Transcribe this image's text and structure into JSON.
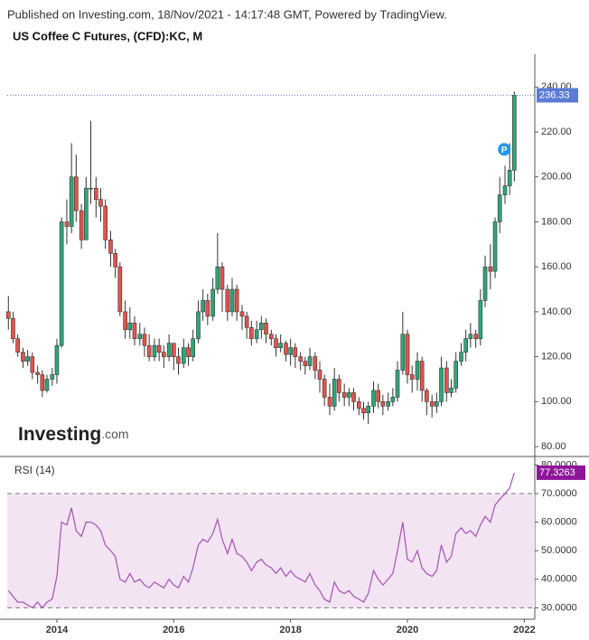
{
  "header": {
    "published": "Published on Investing.com, 18/Nov/2021 - 14:17:48 GMT, Powered by TradingView.",
    "logo_main": "Investing",
    "logo_suffix": ".com"
  },
  "chart_data": [
    {
      "type": "candlestick",
      "title": "US Coffee C Futures, (CFD):KC, M",
      "marker_label": "P",
      "up_color": "#2fa67a",
      "down_color": "#e5534b",
      "last_color": "#5b7bd5",
      "x": [
        2013.17,
        2013.25,
        2013.33,
        2013.42,
        2013.5,
        2013.58,
        2013.67,
        2013.75,
        2013.83,
        2013.92,
        2014,
        2014.08,
        2014.17,
        2014.25,
        2014.33,
        2014.42,
        2014.5,
        2014.58,
        2014.67,
        2014.75,
        2014.83,
        2014.92,
        2015,
        2015.08,
        2015.17,
        2015.25,
        2015.33,
        2015.42,
        2015.5,
        2015.58,
        2015.67,
        2015.75,
        2015.83,
        2015.92,
        2016,
        2016.08,
        2016.17,
        2016.25,
        2016.33,
        2016.42,
        2016.5,
        2016.58,
        2016.67,
        2016.75,
        2016.83,
        2016.92,
        2017,
        2017.08,
        2017.17,
        2017.25,
        2017.33,
        2017.42,
        2017.5,
        2017.58,
        2017.67,
        2017.75,
        2017.83,
        2017.92,
        2018,
        2018.08,
        2018.17,
        2018.25,
        2018.33,
        2018.42,
        2018.5,
        2018.58,
        2018.67,
        2018.75,
        2018.83,
        2018.92,
        2019,
        2019.08,
        2019.17,
        2019.25,
        2019.33,
        2019.42,
        2019.5,
        2019.58,
        2019.67,
        2019.75,
        2019.83,
        2019.92,
        2020,
        2020.08,
        2020.17,
        2020.25,
        2020.33,
        2020.42,
        2020.5,
        2020.58,
        2020.67,
        2020.75,
        2020.83,
        2020.92,
        2021,
        2021.08,
        2021.17,
        2021.25,
        2021.33,
        2021.42,
        2021.5,
        2021.58,
        2021.67,
        2021.75,
        2021.83
      ],
      "open": [
        140,
        137,
        128,
        122,
        118,
        120,
        113,
        112,
        105,
        110,
        112,
        125,
        180,
        178,
        200,
        185,
        172,
        195,
        195,
        190,
        187,
        172,
        166,
        160,
        140,
        132,
        135,
        128,
        130,
        125,
        120,
        125,
        122,
        120,
        126,
        120,
        117,
        124,
        120,
        128,
        140,
        145,
        138,
        150,
        160,
        150,
        140,
        150,
        140,
        138,
        133,
        128,
        132,
        135,
        130,
        128,
        124,
        126,
        121,
        124,
        120,
        118,
        116,
        120,
        114,
        110,
        102,
        98,
        110,
        104,
        102,
        104,
        100,
        97,
        95,
        98,
        105,
        100,
        98,
        100,
        102,
        114,
        130,
        112,
        110,
        118,
        105,
        100,
        98,
        100,
        115,
        104,
        106,
        118,
        122,
        128,
        130,
        128,
        145,
        160,
        158,
        180,
        192,
        196,
        203
      ],
      "high": [
        147,
        140,
        130,
        124,
        123,
        122,
        116,
        114,
        112,
        115,
        128,
        182,
        190,
        215,
        210,
        188,
        200,
        225,
        200,
        195,
        190,
        176,
        168,
        162,
        145,
        142,
        138,
        135,
        133,
        130,
        128,
        128,
        125,
        130,
        126,
        124,
        128,
        126,
        132,
        145,
        150,
        148,
        155,
        175,
        162,
        152,
        155,
        152,
        143,
        140,
        136,
        136,
        138,
        137,
        132,
        130,
        130,
        127,
        128,
        126,
        122,
        120,
        124,
        122,
        118,
        112,
        108,
        115,
        112,
        108,
        106,
        106,
        102,
        100,
        100,
        109,
        108,
        103,
        104,
        106,
        118,
        140,
        132,
        116,
        122,
        120,
        106,
        103,
        104,
        120,
        118,
        110,
        122,
        126,
        132,
        135,
        132,
        150,
        165,
        170,
        182,
        200,
        205,
        215,
        238
      ],
      "low": [
        132,
        126,
        120,
        115,
        116,
        110,
        108,
        102,
        104,
        107,
        108,
        124,
        170,
        175,
        180,
        168,
        172,
        188,
        182,
        180,
        168,
        160,
        155,
        138,
        128,
        128,
        125,
        125,
        120,
        118,
        118,
        118,
        115,
        118,
        114,
        112,
        115,
        116,
        118,
        126,
        136,
        134,
        136,
        148,
        140,
        136,
        138,
        136,
        132,
        128,
        125,
        126,
        128,
        126,
        125,
        120,
        122,
        118,
        116,
        115,
        114,
        112,
        114,
        110,
        104,
        98,
        94,
        96,
        100,
        98,
        98,
        96,
        94,
        92,
        90,
        95,
        97,
        94,
        96,
        98,
        100,
        112,
        108,
        104,
        105,
        100,
        94,
        93,
        95,
        98,
        100,
        102,
        104,
        116,
        118,
        124,
        124,
        125,
        142,
        150,
        155,
        175,
        188,
        192,
        198
      ],
      "close": [
        137,
        128,
        122,
        118,
        120,
        113,
        112,
        105,
        110,
        112,
        125,
        180,
        178,
        200,
        185,
        172,
        195,
        195,
        190,
        187,
        172,
        166,
        160,
        140,
        132,
        135,
        128,
        130,
        125,
        120,
        125,
        122,
        120,
        126,
        120,
        117,
        124,
        120,
        128,
        140,
        145,
        138,
        150,
        160,
        150,
        140,
        150,
        140,
        138,
        133,
        128,
        132,
        135,
        130,
        128,
        124,
        126,
        121,
        124,
        120,
        118,
        116,
        120,
        114,
        110,
        102,
        98,
        110,
        104,
        102,
        104,
        100,
        97,
        95,
        98,
        105,
        100,
        98,
        100,
        102,
        114,
        130,
        112,
        110,
        118,
        105,
        100,
        98,
        100,
        115,
        104,
        106,
        118,
        122,
        128,
        130,
        128,
        145,
        160,
        158,
        180,
        192,
        196,
        203,
        236.33
      ],
      "xlim": [
        2013.15,
        2022.18
      ],
      "xticks": [
        2014,
        2016,
        2018,
        2020,
        2022
      ],
      "ylim": [
        75.6,
        254.6
      ],
      "yticks": [
        {
          "value": 80,
          "label": "80.00"
        },
        {
          "value": 100,
          "label": "100.00"
        },
        {
          "value": 120,
          "label": "120.00"
        },
        {
          "value": 140,
          "label": "140.00"
        },
        {
          "value": 160,
          "label": "160.00"
        },
        {
          "value": 180,
          "label": "180.00"
        },
        {
          "value": 200,
          "label": "200.00"
        },
        {
          "value": 220,
          "label": "220.00"
        },
        {
          "value": 240,
          "label": "240.00"
        }
      ]
    },
    {
      "type": "line",
      "title": "RSI (14)",
      "color": "#a352b3",
      "band_color": "#f3e4f3",
      "last_color": "#8e1599",
      "values": [
        36,
        34,
        32,
        32,
        31,
        30,
        32,
        30,
        32,
        33,
        41,
        60,
        59,
        65,
        57,
        55,
        60,
        60,
        59,
        57,
        52,
        50,
        48,
        40,
        39,
        42,
        39,
        40,
        38,
        37,
        39,
        38,
        37,
        40,
        38,
        37,
        41,
        39,
        44,
        52,
        54,
        53,
        56,
        61,
        54,
        49,
        54,
        49,
        48,
        46,
        43,
        46,
        47,
        45,
        44,
        42,
        44,
        41,
        43,
        41,
        40,
        39,
        42,
        38,
        36,
        33,
        32,
        39,
        36,
        35,
        36,
        34,
        33,
        32,
        35,
        43,
        40,
        38,
        40,
        42,
        50,
        60,
        47,
        46,
        50,
        44,
        42,
        41,
        43,
        52,
        46,
        48,
        56,
        58,
        56,
        57,
        55,
        59,
        62,
        60,
        66,
        68,
        70,
        72,
        77.3263
      ],
      "ylim": [
        26,
        83
      ],
      "yticks": [
        {
          "value": 30,
          "label": "30.0000"
        },
        {
          "value": 40,
          "label": "40.0000"
        },
        {
          "value": 50,
          "label": "50.0000"
        },
        {
          "value": 60,
          "label": "60.0000"
        },
        {
          "value": 70,
          "label": "70.0000"
        },
        {
          "value": 80,
          "label": "80.0000"
        }
      ],
      "band": [
        30,
        70
      ]
    }
  ]
}
